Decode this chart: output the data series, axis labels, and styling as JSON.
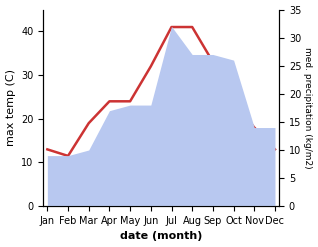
{
  "months": [
    "Jan",
    "Feb",
    "Mar",
    "Apr",
    "May",
    "Jun",
    "Jul",
    "Aug",
    "Sep",
    "Oct",
    "Nov",
    "Dec"
  ],
  "temp": [
    13,
    11.5,
    19,
    24,
    24,
    32,
    41,
    41,
    33,
    24,
    18,
    13
  ],
  "precip": [
    9,
    9,
    10,
    17,
    18,
    18,
    32,
    27,
    27,
    26,
    14,
    14
  ],
  "temp_color": "#cc3333",
  "precip_color": "#b8c8f0",
  "ylabel_left": "max temp (C)",
  "ylabel_right": "med. precipitation (kg/m2)",
  "xlabel": "date (month)",
  "ylim_left": [
    0,
    45
  ],
  "ylim_right": [
    0,
    35
  ],
  "yticks_left": [
    0,
    10,
    20,
    30,
    40
  ],
  "yticks_right": [
    0,
    5,
    10,
    15,
    20,
    25,
    30,
    35
  ]
}
